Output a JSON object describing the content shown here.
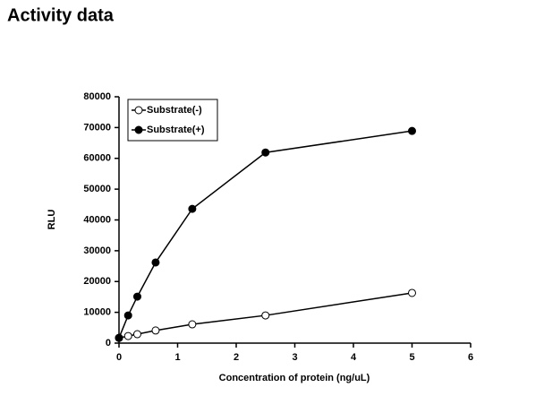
{
  "chart_data": {
    "type": "line",
    "title": "Activity data",
    "x_label": "Concentration of protein (ng/uL)",
    "y_label": "RLU",
    "x": [
      0,
      0.156,
      0.3125,
      0.625,
      1.25,
      2.5,
      5
    ],
    "series": [
      {
        "name": "Substrate(-)",
        "color": "#000000",
        "marker_fill": "#ffffff",
        "values": [
          1700,
          2300,
          2900,
          4100,
          6100,
          9000,
          16300
        ]
      },
      {
        "name": "Substrate(+)",
        "color": "#000000",
        "marker_fill": "#000000",
        "values": [
          1700,
          9000,
          15100,
          26200,
          43600,
          61900,
          68900
        ]
      }
    ],
    "xlim": [
      0,
      6
    ],
    "xticks": [
      0,
      1,
      2,
      3,
      4,
      5,
      6
    ],
    "ylim": [
      0,
      80000
    ],
    "yticks": [
      0,
      10000,
      20000,
      30000,
      40000,
      50000,
      60000,
      70000,
      80000
    ],
    "grid": false,
    "legend": "upper left"
  }
}
